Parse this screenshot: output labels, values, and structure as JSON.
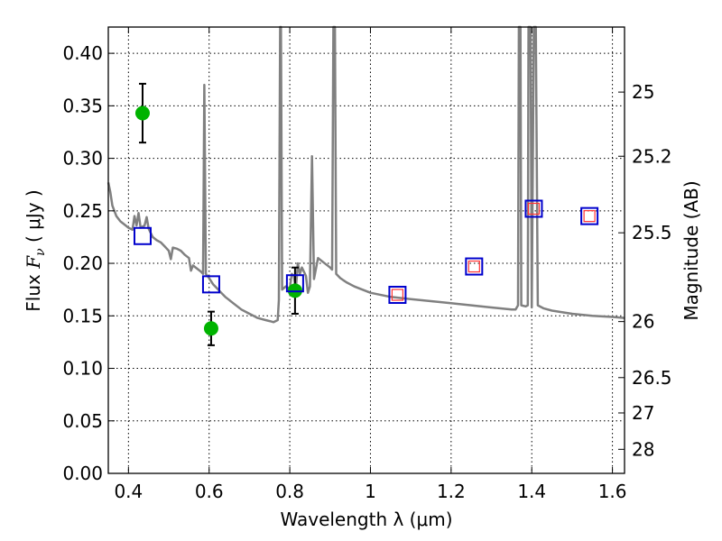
{
  "chart_data": {
    "type": "scatter",
    "xlabel": "Wavelength  λ (μm)",
    "ylabel_left": {
      "prefix": "Flux  ",
      "symbol": "F",
      "subscript": "ν",
      "suffix": "  ( μJy )"
    },
    "ylabel_right": "Magnitude (AB)",
    "xlim": [
      0.35,
      1.63
    ],
    "ylim": [
      0.0,
      0.425
    ],
    "grid": true,
    "x_ticks": [
      {
        "value": 0.4,
        "label": "0.4"
      },
      {
        "value": 0.6,
        "label": "0.6"
      },
      {
        "value": 0.8,
        "label": "0.8"
      },
      {
        "value": 1.0,
        "label": "1"
      },
      {
        "value": 1.2,
        "label": "1.2"
      },
      {
        "value": 1.4,
        "label": "1.4"
      },
      {
        "value": 1.6,
        "label": "1.6"
      }
    ],
    "y_ticks": [
      {
        "value": 0.0,
        "label": "0.00"
      },
      {
        "value": 0.05,
        "label": "0.05"
      },
      {
        "value": 0.1,
        "label": "0.10"
      },
      {
        "value": 0.15,
        "label": "0.15"
      },
      {
        "value": 0.2,
        "label": "0.20"
      },
      {
        "value": 0.25,
        "label": "0.25"
      },
      {
        "value": 0.3,
        "label": "0.30"
      },
      {
        "value": 0.35,
        "label": "0.35"
      },
      {
        "value": 0.4,
        "label": "0.40"
      }
    ],
    "right_ticks": [
      {
        "value": 25,
        "label": "25"
      },
      {
        "value": 25.2,
        "label": "25.2"
      },
      {
        "value": 25.5,
        "label": "25.5"
      },
      {
        "value": 26,
        "label": "26"
      },
      {
        "value": 26.5,
        "label": "26.5"
      },
      {
        "value": 27,
        "label": "27"
      },
      {
        "value": 28,
        "label": "28"
      }
    ],
    "series": [
      {
        "kind": "line",
        "color": "#808080",
        "points": [
          [
            0.35,
            0.277
          ],
          [
            0.355,
            0.268
          ],
          [
            0.36,
            0.255
          ],
          [
            0.37,
            0.245
          ],
          [
            0.38,
            0.24
          ],
          [
            0.39,
            0.237
          ],
          [
            0.4,
            0.234
          ],
          [
            0.41,
            0.232
          ],
          [
            0.415,
            0.245
          ],
          [
            0.42,
            0.236
          ],
          [
            0.425,
            0.248
          ],
          [
            0.43,
            0.234
          ],
          [
            0.44,
            0.236
          ],
          [
            0.445,
            0.244
          ],
          [
            0.45,
            0.233
          ],
          [
            0.46,
            0.225
          ],
          [
            0.47,
            0.222
          ],
          [
            0.48,
            0.22
          ],
          [
            0.49,
            0.216
          ],
          [
            0.5,
            0.212
          ],
          [
            0.505,
            0.204
          ],
          [
            0.51,
            0.215
          ],
          [
            0.52,
            0.214
          ],
          [
            0.53,
            0.212
          ],
          [
            0.54,
            0.208
          ],
          [
            0.55,
            0.205
          ],
          [
            0.555,
            0.193
          ],
          [
            0.56,
            0.198
          ],
          [
            0.57,
            0.195
          ],
          [
            0.58,
            0.192
          ],
          [
            0.585,
            0.19
          ],
          [
            0.588,
            0.37
          ],
          [
            0.592,
            0.19
          ],
          [
            0.6,
            0.186
          ],
          [
            0.61,
            0.18
          ],
          [
            0.62,
            0.176
          ],
          [
            0.63,
            0.172
          ],
          [
            0.64,
            0.168
          ],
          [
            0.65,
            0.165
          ],
          [
            0.66,
            0.162
          ],
          [
            0.67,
            0.159
          ],
          [
            0.68,
            0.156
          ],
          [
            0.69,
            0.154
          ],
          [
            0.7,
            0.152
          ],
          [
            0.71,
            0.15
          ],
          [
            0.72,
            0.148
          ],
          [
            0.73,
            0.147
          ],
          [
            0.74,
            0.146
          ],
          [
            0.75,
            0.145
          ],
          [
            0.76,
            0.144
          ],
          [
            0.77,
            0.146
          ],
          [
            0.773,
            0.165
          ],
          [
            0.776,
            0.425
          ],
          [
            0.778,
            0.425
          ],
          [
            0.781,
            0.175
          ],
          [
            0.79,
            0.178
          ],
          [
            0.8,
            0.176
          ],
          [
            0.805,
            0.19
          ],
          [
            0.81,
            0.188
          ],
          [
            0.815,
            0.175
          ],
          [
            0.82,
            0.2
          ],
          [
            0.825,
            0.19
          ],
          [
            0.83,
            0.196
          ],
          [
            0.84,
            0.188
          ],
          [
            0.845,
            0.172
          ],
          [
            0.85,
            0.178
          ],
          [
            0.855,
            0.302
          ],
          [
            0.86,
            0.185
          ],
          [
            0.865,
            0.195
          ],
          [
            0.87,
            0.205
          ],
          [
            0.88,
            0.202
          ],
          [
            0.89,
            0.199
          ],
          [
            0.9,
            0.196
          ],
          [
            0.905,
            0.194
          ],
          [
            0.908,
            0.425
          ],
          [
            0.912,
            0.425
          ],
          [
            0.915,
            0.19
          ],
          [
            0.925,
            0.186
          ],
          [
            0.94,
            0.182
          ],
          [
            0.96,
            0.178
          ],
          [
            0.98,
            0.175
          ],
          [
            1.0,
            0.172
          ],
          [
            1.05,
            0.168
          ],
          [
            1.1,
            0.166
          ],
          [
            1.15,
            0.164
          ],
          [
            1.2,
            0.162
          ],
          [
            1.25,
            0.16
          ],
          [
            1.3,
            0.158
          ],
          [
            1.35,
            0.156
          ],
          [
            1.36,
            0.156
          ],
          [
            1.366,
            0.16
          ],
          [
            1.368,
            0.425
          ],
          [
            1.372,
            0.425
          ],
          [
            1.374,
            0.16
          ],
          [
            1.385,
            0.159
          ],
          [
            1.39,
            0.16
          ],
          [
            1.392,
            0.425
          ],
          [
            1.397,
            0.425
          ],
          [
            1.4,
            0.158
          ],
          [
            1.405,
            0.425
          ],
          [
            1.41,
            0.425
          ],
          [
            1.415,
            0.16
          ],
          [
            1.43,
            0.157
          ],
          [
            1.45,
            0.155
          ],
          [
            1.5,
            0.152
          ],
          [
            1.55,
            0.15
          ],
          [
            1.6,
            0.149
          ],
          [
            1.63,
            0.148
          ]
        ]
      },
      {
        "kind": "points",
        "marker": "circle",
        "color": "#00b300",
        "points": [
          {
            "x": 0.435,
            "y": 0.343,
            "err": 0.028
          },
          {
            "x": 0.605,
            "y": 0.138,
            "err": 0.016
          },
          {
            "x": 0.813,
            "y": 0.174,
            "err": 0.022
          }
        ]
      },
      {
        "kind": "points",
        "marker": "square",
        "color": "#0000cc",
        "points": [
          {
            "x": 0.435,
            "y": 0.226
          },
          {
            "x": 0.605,
            "y": 0.18
          },
          {
            "x": 0.813,
            "y": 0.181
          },
          {
            "x": 1.067,
            "y": 0.17
          },
          {
            "x": 1.257,
            "y": 0.197
          },
          {
            "x": 1.405,
            "y": 0.252
          },
          {
            "x": 1.543,
            "y": 0.245
          }
        ]
      },
      {
        "kind": "points",
        "marker": "square",
        "color": "#ff3333",
        "points": [
          {
            "x": 1.067,
            "y": 0.17
          },
          {
            "x": 1.257,
            "y": 0.197
          },
          {
            "x": 1.405,
            "y": 0.252
          },
          {
            "x": 1.543,
            "y": 0.245
          }
        ]
      }
    ]
  }
}
